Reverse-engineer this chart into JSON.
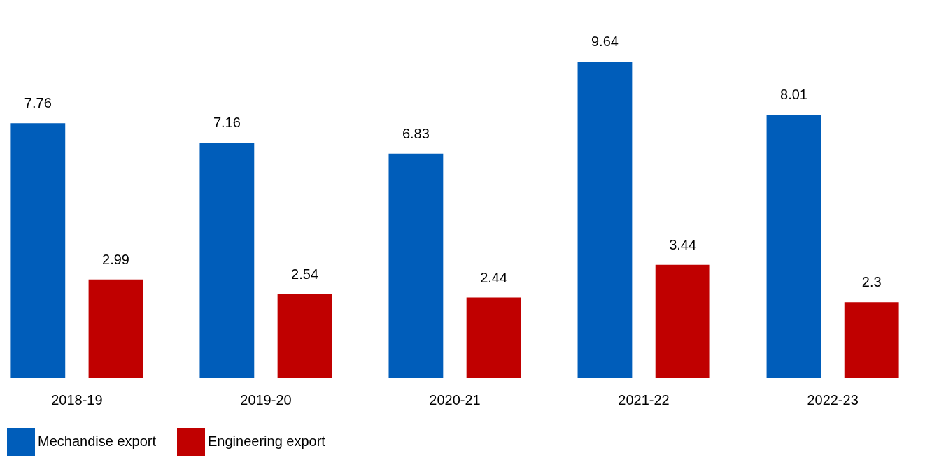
{
  "chart_data": {
    "type": "bar",
    "categories": [
      "2018-19",
      "2019-20",
      "2020-21",
      "2021-22",
      "2022-23"
    ],
    "series": [
      {
        "name": "Mechandise export",
        "color": "#005dba",
        "values": [
          7.76,
          7.16,
          6.83,
          9.64,
          8.01
        ]
      },
      {
        "name": "Engineering export",
        "color": "#c00000",
        "values": [
          2.99,
          2.54,
          2.44,
          3.44,
          2.3
        ]
      }
    ],
    "data_labels": true,
    "legend": "bottom",
    "tick_labels": "x"
  }
}
